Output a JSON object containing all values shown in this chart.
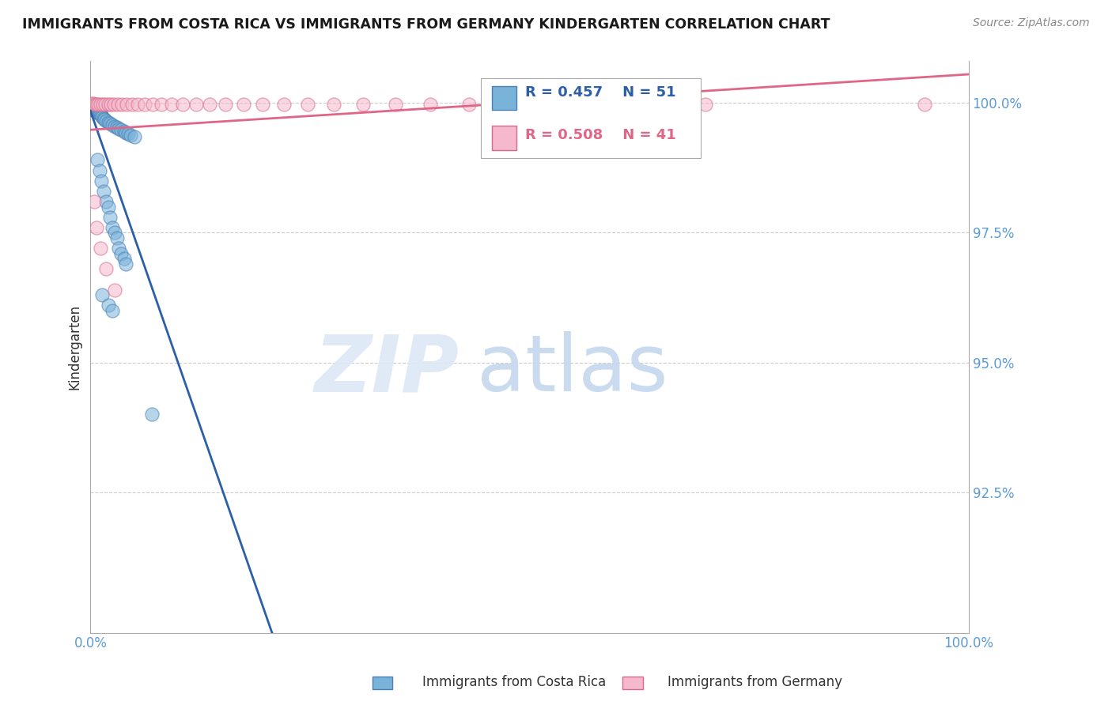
{
  "title": "IMMIGRANTS FROM COSTA RICA VS IMMIGRANTS FROM GERMANY KINDERGARTEN CORRELATION CHART",
  "source": "Source: ZipAtlas.com",
  "ylabel": "Kindergarten",
  "xlim": [
    0.0,
    1.0
  ],
  "ylim": [
    0.898,
    1.008
  ],
  "ytick_positions": [
    0.925,
    0.95,
    0.975,
    1.0
  ],
  "ytick_labels": [
    "92.5%",
    "95.0%",
    "97.5%",
    "100.0%"
  ],
  "xtick_positions": [
    0.0,
    1.0
  ],
  "xtick_labels": [
    "0.0%",
    "100.0%"
  ],
  "series_blue": {
    "label": "Immigrants from Costa Rica",
    "R": 0.457,
    "N": 51,
    "color": "#7ab3d9",
    "edge_color": "#4a7fb5"
  },
  "series_pink": {
    "label": "Immigrants from Germany",
    "R": 0.508,
    "N": 41,
    "color": "#f5b8cc",
    "edge_color": "#d9698a"
  },
  "trend_blue_color": "#2c5fa8",
  "trend_pink_color": "#e06688",
  "legend_R_blue": "R = 0.457",
  "legend_N_blue": "N = 51",
  "legend_R_pink": "R = 0.508",
  "legend_N_pink": "N = 41",
  "watermark_zip": "ZIP",
  "watermark_atlas": "atlas",
  "background_color": "#ffffff",
  "grid_color": "#cccccc",
  "grid_style": "--"
}
